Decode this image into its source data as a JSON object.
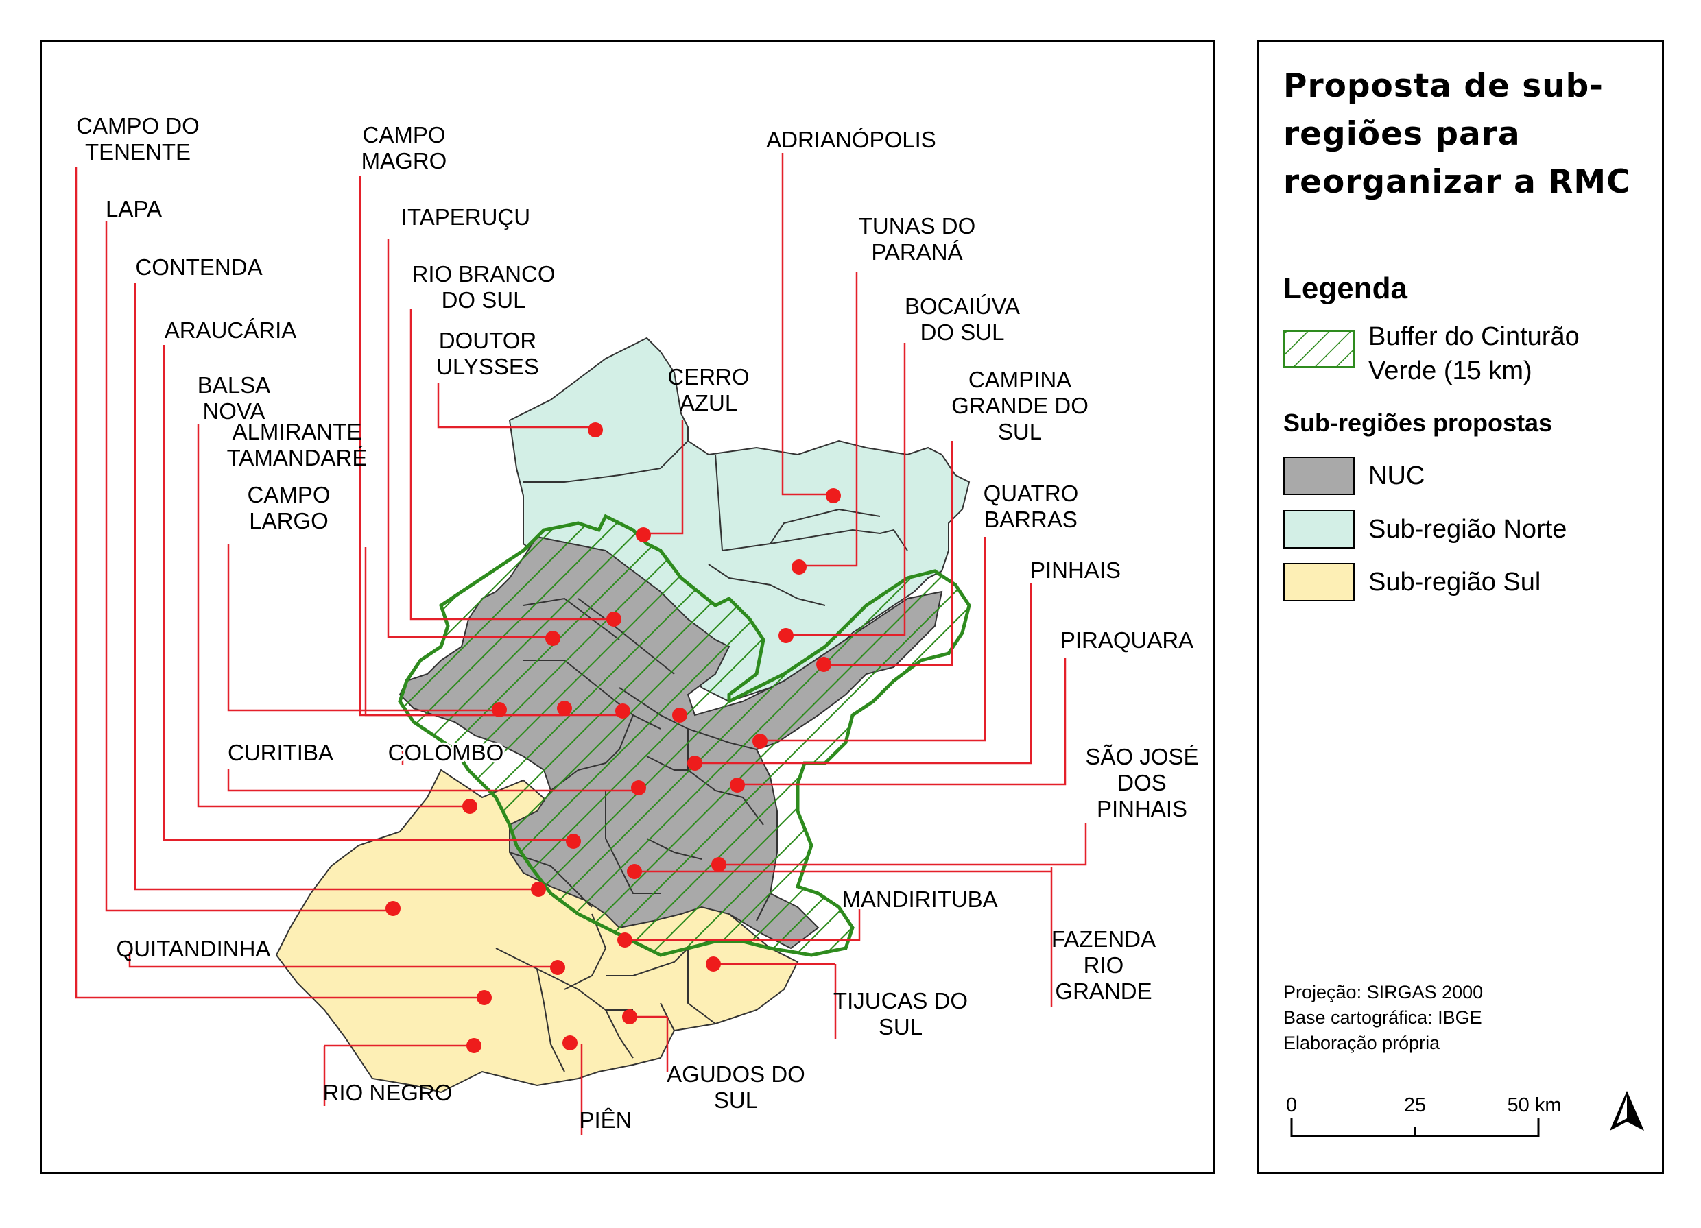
{
  "legend": {
    "title": "Proposta de sub-regiões para reorganizar a RMC",
    "heading": "Legenda",
    "buffer_label": "Buffer do Cinturão Verde (15 km)",
    "subregions_heading": "Sub-regiões propostas",
    "items": [
      {
        "label": "NUC",
        "color": "#a9a9a9"
      },
      {
        "label": "Sub-região Norte",
        "color": "#d3efe6"
      },
      {
        "label": "Sub-região Sul",
        "color": "#fdefb5"
      }
    ],
    "credits": [
      "Projeção: SIRGAS 2000",
      "Base cartográfica: IBGE",
      "Elaboração própria"
    ],
    "scale": {
      "ticks": [
        "0",
        "25",
        "50 km"
      ]
    },
    "north_arrow": "north-arrow-icon"
  },
  "colors": {
    "nuc": "#a9a9a9",
    "norte": "#d3efe6",
    "sul": "#fdefb5",
    "buffer": "#2e8b1e",
    "leader": "#e4202a",
    "dot": "#ee1c1c"
  },
  "labels": [
    {
      "id": "campo-do-tenente",
      "lines": [
        "CAMPO DO",
        "TENENTE"
      ]
    },
    {
      "id": "lapa",
      "lines": [
        "LAPA"
      ]
    },
    {
      "id": "contenda",
      "lines": [
        "CONTENDA"
      ]
    },
    {
      "id": "araucaria",
      "lines": [
        "ARAUCÁRIA"
      ]
    },
    {
      "id": "balsa-nova",
      "lines": [
        "BALSA",
        "NOVA"
      ]
    },
    {
      "id": "almirante-tamandare",
      "lines": [
        "ALMIRANTE",
        "TAMANDARÉ"
      ]
    },
    {
      "id": "campo-largo",
      "lines": [
        "CAMPO",
        "LARGO"
      ]
    },
    {
      "id": "curitiba",
      "lines": [
        "CURITIBA"
      ]
    },
    {
      "id": "colombo",
      "lines": [
        "COLOMBO"
      ]
    },
    {
      "id": "campo-magro",
      "lines": [
        "CAMPO",
        "MAGRO"
      ]
    },
    {
      "id": "itaperucu",
      "lines": [
        "ITAPERUÇU"
      ]
    },
    {
      "id": "rio-branco-do-sul",
      "lines": [
        "RIO BRANCO",
        "DO SUL"
      ]
    },
    {
      "id": "doutor-ulysses",
      "lines": [
        "DOUTOR",
        "ULYSSES"
      ]
    },
    {
      "id": "cerro-azul",
      "lines": [
        "CERRO",
        "AZUL"
      ]
    },
    {
      "id": "adrianopolis",
      "lines": [
        "ADRIANÓPOLIS"
      ]
    },
    {
      "id": "tunas-do-parana",
      "lines": [
        "TUNAS DO",
        "PARANÁ"
      ]
    },
    {
      "id": "bocaiuva-do-sul",
      "lines": [
        "BOCAIÚVA",
        "DO SUL"
      ]
    },
    {
      "id": "campina-grande-do-sul",
      "lines": [
        "CAMPINA",
        "GRANDE DO",
        "SUL"
      ]
    },
    {
      "id": "quatro-barras",
      "lines": [
        "QUATRO",
        "BARRAS"
      ]
    },
    {
      "id": "pinhais",
      "lines": [
        "PINHAIS"
      ]
    },
    {
      "id": "piraquara",
      "lines": [
        "PIRAQUARA"
      ]
    },
    {
      "id": "sao-jose-dos-pinhais",
      "lines": [
        "SÃO JOSÉ",
        "DOS",
        "PINHAIS"
      ]
    },
    {
      "id": "mandirituba",
      "lines": [
        "MANDIRITUBA"
      ]
    },
    {
      "id": "fazenda-rio-grande",
      "lines": [
        "FAZENDA",
        "RIO",
        "GRANDE"
      ]
    },
    {
      "id": "tijucas-do-sul",
      "lines": [
        "TIJUCAS DO",
        "SUL"
      ]
    },
    {
      "id": "agudos-do-sul",
      "lines": [
        "AGUDOS DO",
        "SUL"
      ]
    },
    {
      "id": "pien",
      "lines": [
        "PIÊN"
      ]
    },
    {
      "id": "rio-negro",
      "lines": [
        "RIO NEGRO"
      ]
    },
    {
      "id": "quitandinha",
      "lines": [
        "QUITANDINHA"
      ]
    }
  ]
}
